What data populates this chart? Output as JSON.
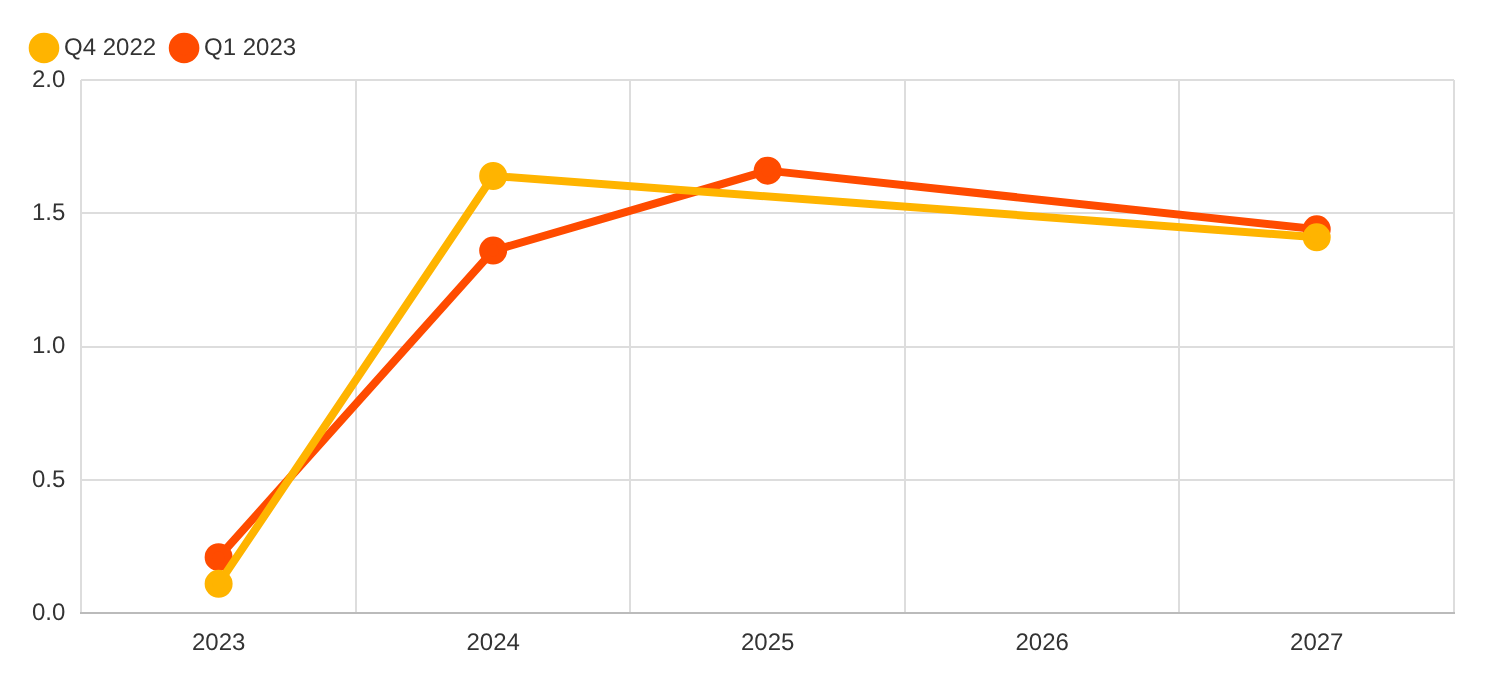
{
  "chart_data": {
    "type": "line",
    "categories": [
      "2023",
      "2024",
      "2025",
      "2026",
      "2027"
    ],
    "series": [
      {
        "name": "Q1 2023",
        "color": "#ff4b00",
        "values": [
          0.21,
          1.36,
          1.66,
          null,
          1.44
        ]
      },
      {
        "name": "Q4 2022",
        "color": "#ffb400",
        "values": [
          0.11,
          1.64,
          null,
          null,
          1.41
        ]
      }
    ],
    "ylim": [
      0,
      2
    ],
    "yticks": [
      {
        "value": 0,
        "label": "0.0"
      },
      {
        "value": 0.5,
        "label": "0.5"
      },
      {
        "value": 1,
        "label": "1.0"
      },
      {
        "value": 1.5,
        "label": "1.5"
      },
      {
        "value": 2,
        "label": "2.0"
      }
    ],
    "grid": true,
    "legend": "top left",
    "marker": "circle",
    "line_style": "solid"
  }
}
